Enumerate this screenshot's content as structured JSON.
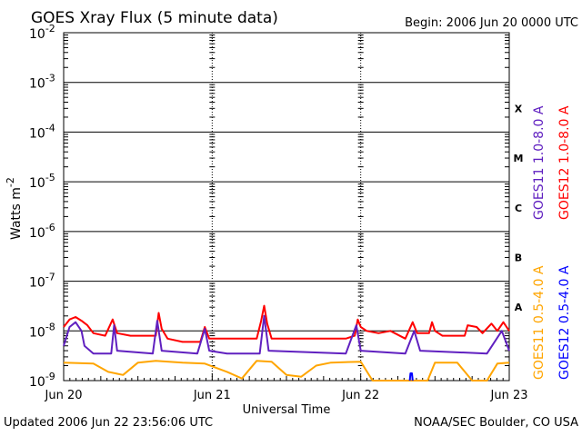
{
  "chart_data": {
    "type": "line",
    "title": "GOES Xray Flux (5 minute data)",
    "begin_label": "Begin:  2006 Jun 20 0000 UTC",
    "xlabel": "Universal Time",
    "ylabel_main": "Watts m",
    "ylabel_exp": "-2",
    "y_scale": "log",
    "ylim": [
      1e-09,
      0.01
    ],
    "y_ticks": [
      {
        "base": "10",
        "exp": "-9",
        "value": 1e-09
      },
      {
        "base": "10",
        "exp": "-8",
        "value": 1e-08
      },
      {
        "base": "10",
        "exp": "-7",
        "value": 1e-07
      },
      {
        "base": "10",
        "exp": "-6",
        "value": 1e-06
      },
      {
        "base": "10",
        "exp": "-5",
        "value": 1e-05
      },
      {
        "base": "10",
        "exp": "-4",
        "value": 0.0001
      },
      {
        "base": "10",
        "exp": "-3",
        "value": 0.001
      },
      {
        "base": "10",
        "exp": "-2",
        "value": 0.01
      }
    ],
    "x_ticks": [
      {
        "label": "Jun 20",
        "day": 0
      },
      {
        "label": "Jun 21",
        "day": 1
      },
      {
        "label": "Jun 22",
        "day": 2
      },
      {
        "label": "Jun 23",
        "day": 3
      }
    ],
    "flare_classes": [
      {
        "label": "X",
        "value": 0.0003
      },
      {
        "label": "M",
        "value": 3e-05
      },
      {
        "label": "C",
        "value": 3e-06
      },
      {
        "label": "B",
        "value": 3e-07
      },
      {
        "label": "A",
        "value": 3e-08
      }
    ],
    "grid": true,
    "legend_placement": "right",
    "series": [
      {
        "name": "GOES12 1.0-8.0 A",
        "color": "#ff0000",
        "points": [
          [
            0.0,
            1.2e-08
          ],
          [
            0.04,
            1.7e-08
          ],
          [
            0.08,
            1.9e-08
          ],
          [
            0.12,
            1.6e-08
          ],
          [
            0.16,
            1.3e-08
          ],
          [
            0.2,
            9e-09
          ],
          [
            0.28,
            8e-09
          ],
          [
            0.33,
            1.7e-08
          ],
          [
            0.36,
            9e-09
          ],
          [
            0.45,
            8e-09
          ],
          [
            0.62,
            8e-09
          ],
          [
            0.64,
            2.3e-08
          ],
          [
            0.66,
            1.1e-08
          ],
          [
            0.7,
            7e-09
          ],
          [
            0.8,
            6e-09
          ],
          [
            0.92,
            6e-09
          ],
          [
            0.95,
            1.2e-08
          ],
          [
            0.98,
            7e-09
          ],
          [
            1.06,
            7e-09
          ],
          [
            1.2,
            7e-09
          ],
          [
            1.3,
            7e-09
          ],
          [
            1.33,
            1.6e-08
          ],
          [
            1.35,
            3.2e-08
          ],
          [
            1.37,
            1.4e-08
          ],
          [
            1.4,
            7e-09
          ],
          [
            1.6,
            7e-09
          ],
          [
            1.9,
            7e-09
          ],
          [
            1.96,
            8e-09
          ],
          [
            1.98,
            1.7e-08
          ],
          [
            2.0,
            1.2e-08
          ],
          [
            2.04,
            1e-08
          ],
          [
            2.12,
            9e-09
          ],
          [
            2.2,
            1e-08
          ],
          [
            2.3,
            7e-09
          ],
          [
            2.35,
            1.5e-08
          ],
          [
            2.38,
            9e-09
          ],
          [
            2.46,
            9e-09
          ],
          [
            2.48,
            1.5e-08
          ],
          [
            2.5,
            1e-08
          ],
          [
            2.55,
            8e-09
          ],
          [
            2.7,
            8e-09
          ],
          [
            2.72,
            1.3e-08
          ],
          [
            2.78,
            1.2e-08
          ],
          [
            2.82,
            9e-09
          ],
          [
            2.88,
            1.4e-08
          ],
          [
            2.92,
            1e-08
          ],
          [
            2.96,
            1.5e-08
          ],
          [
            3.0,
            1e-08
          ]
        ]
      },
      {
        "name": "GOES11 1.0-8.0 A",
        "color": "#6020c0",
        "points": [
          [
            0.0,
            5e-09
          ],
          [
            0.04,
            1.2e-08
          ],
          [
            0.08,
            1.5e-08
          ],
          [
            0.12,
            1e-08
          ],
          [
            0.14,
            5e-09
          ],
          [
            0.2,
            3.5e-09
          ],
          [
            0.32,
            3.5e-09
          ],
          [
            0.34,
            1.3e-08
          ],
          [
            0.36,
            4e-09
          ],
          [
            0.6,
            3.5e-09
          ],
          [
            0.63,
            1.6e-08
          ],
          [
            0.66,
            4e-09
          ],
          [
            0.9,
            3.5e-09
          ],
          [
            0.95,
            1.1e-08
          ],
          [
            0.98,
            4e-09
          ],
          [
            1.1,
            3.5e-09
          ],
          [
            1.32,
            3.5e-09
          ],
          [
            1.35,
            2e-08
          ],
          [
            1.38,
            4e-09
          ],
          [
            1.9,
            3.5e-09
          ],
          [
            1.97,
            1.3e-08
          ],
          [
            2.0,
            4e-09
          ],
          [
            2.3,
            3.5e-09
          ],
          [
            2.36,
            1e-08
          ],
          [
            2.4,
            4e-09
          ],
          [
            2.85,
            3.5e-09
          ],
          [
            2.95,
            1e-08
          ],
          [
            3.0,
            4e-09
          ]
        ]
      },
      {
        "name": "GOES11 0.5-4.0 A",
        "color": "#ffa500",
        "points": [
          [
            0.0,
            2.3e-09
          ],
          [
            0.2,
            2.2e-09
          ],
          [
            0.3,
            1.5e-09
          ],
          [
            0.4,
            1.3e-09
          ],
          [
            0.5,
            2.3e-09
          ],
          [
            0.62,
            2.5e-09
          ],
          [
            0.8,
            2.3e-09
          ],
          [
            0.95,
            2.2e-09
          ],
          [
            1.1,
            1.5e-09
          ],
          [
            1.2,
            1.1e-09
          ],
          [
            1.3,
            2.5e-09
          ],
          [
            1.4,
            2.4e-09
          ],
          [
            1.5,
            1.3e-09
          ],
          [
            1.6,
            1.2e-09
          ],
          [
            1.7,
            2e-09
          ],
          [
            1.8,
            2.3e-09
          ],
          [
            2.0,
            2.4e-09
          ],
          [
            2.08,
            1e-09
          ],
          [
            2.15,
            1e-09
          ],
          [
            2.2,
            1e-09
          ],
          [
            2.3,
            1e-09
          ],
          [
            2.45,
            1e-09
          ],
          [
            2.5,
            2.3e-09
          ],
          [
            2.65,
            2.3e-09
          ],
          [
            2.75,
            1e-09
          ],
          [
            2.85,
            1e-09
          ],
          [
            2.92,
            2.2e-09
          ],
          [
            3.0,
            2.3e-09
          ]
        ]
      },
      {
        "name": "GOES12 0.5-4.0 A",
        "color": "#0000ff",
        "points": [
          [
            2.33,
            1e-09
          ],
          [
            2.335,
            1.4e-09
          ],
          [
            2.345,
            1.4e-09
          ],
          [
            2.35,
            1e-09
          ]
        ]
      }
    ]
  },
  "footer": {
    "updated": "Updated 2006 Jun 22 23:56:06 UTC",
    "source": "NOAA/SEC Boulder, CO USA"
  }
}
